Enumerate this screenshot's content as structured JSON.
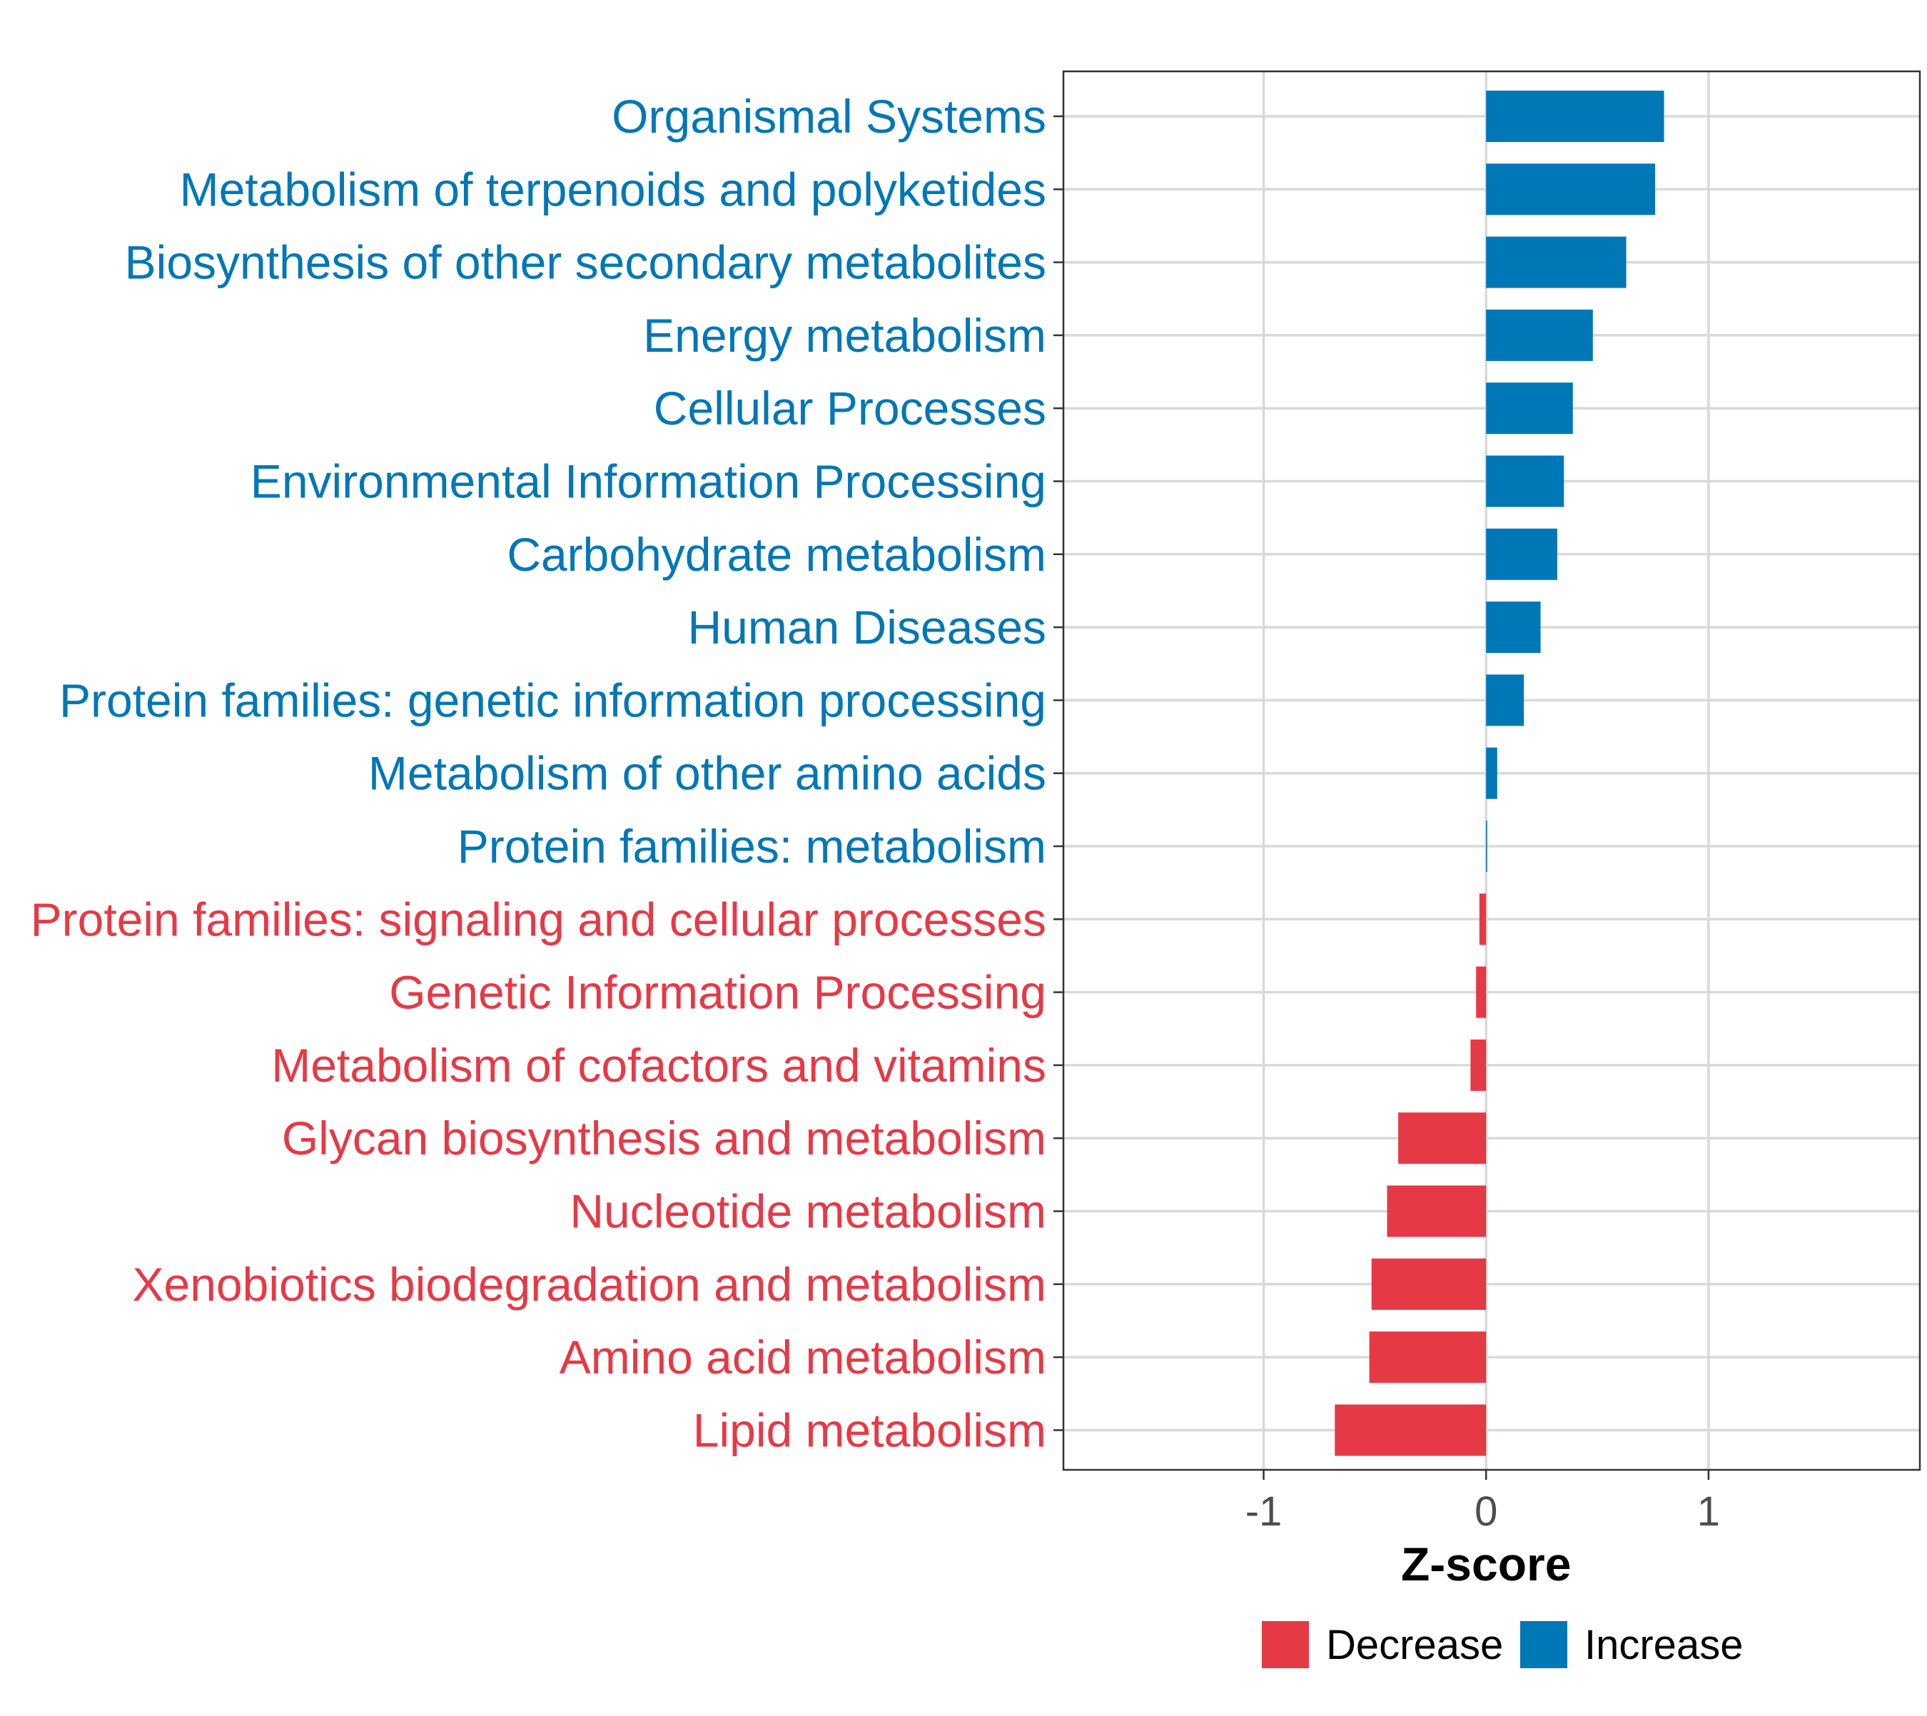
{
  "colors": {
    "decrease": "#e63946",
    "increase": "#0077b6"
  },
  "chart_data": {
    "type": "bar",
    "orientation": "horizontal",
    "xlabel": "Z-score",
    "ylabel": "",
    "xlim": [
      -1.9,
      1.95
    ],
    "x_ticks": [
      -1,
      0,
      1
    ],
    "x_tick_labels": [
      "-1",
      "0",
      "1"
    ],
    "grid": true,
    "legend_position": "bottom",
    "legend": [
      {
        "key": "decrease",
        "label": "Decrease"
      },
      {
        "key": "increase",
        "label": "Increase"
      }
    ],
    "categories": [
      "Organismal Systems",
      "Metabolism of terpenoids and polyketides",
      "Biosynthesis of other secondary metabolites",
      "Energy metabolism",
      "Cellular Processes",
      "Environmental Information Processing",
      "Carbohydrate metabolism",
      "Human Diseases",
      "Protein families: genetic information processing",
      "Metabolism of other amino acids",
      "Protein families: metabolism",
      "Protein families: signaling and cellular processes",
      "Genetic Information Processing",
      "Metabolism of cofactors and vitamins",
      "Glycan biosynthesis and metabolism",
      "Nucleotide metabolism",
      "Xenobiotics biodegradation and metabolism",
      "Amino acid metabolism",
      "Lipid metabolism"
    ],
    "values": [
      0.8,
      0.76,
      0.63,
      0.48,
      0.39,
      0.35,
      0.32,
      0.245,
      0.17,
      0.05,
      0.005,
      -0.03,
      -0.045,
      -0.07,
      -0.395,
      -0.445,
      -0.515,
      -0.525,
      -0.68
    ],
    "groups": [
      "increase",
      "increase",
      "increase",
      "increase",
      "increase",
      "increase",
      "increase",
      "increase",
      "increase",
      "increase",
      "increase",
      "decrease",
      "decrease",
      "decrease",
      "decrease",
      "decrease",
      "decrease",
      "decrease",
      "decrease"
    ]
  }
}
